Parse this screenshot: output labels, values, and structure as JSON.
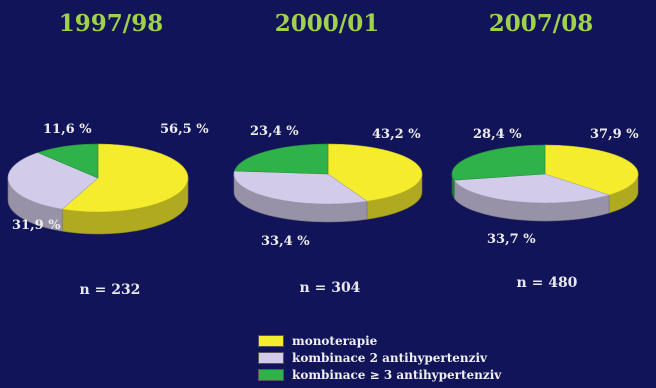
{
  "chart_data": [
    {
      "type": "pie",
      "title": "1997/98",
      "n_label": "n = 232",
      "slices": [
        {
          "name": "monoterapie",
          "value": 56.5,
          "label": "56,5 %"
        },
        {
          "name": "kombinace 2 antihypertenziv",
          "value": 31.9,
          "label": "31,9 %"
        },
        {
          "name": "kombinace ≥ 3 antihypertenziv",
          "value": 11.6,
          "label": "11,6 %"
        }
      ]
    },
    {
      "type": "pie",
      "title": "2000/01",
      "n_label": "n = 304",
      "slices": [
        {
          "name": "monoterapie",
          "value": 43.2,
          "label": "43,2 %"
        },
        {
          "name": "kombinace 2 antihypertenziv",
          "value": 33.4,
          "label": "33,4 %"
        },
        {
          "name": "kombinace ≥ 3 antihypertenziv",
          "value": 23.4,
          "label": "23,4 %"
        }
      ]
    },
    {
      "type": "pie",
      "title": "2007/08",
      "n_label": "n = 480",
      "slices": [
        {
          "name": "monoterapie",
          "value": 37.9,
          "label": "37,9 %"
        },
        {
          "name": "kombinace 2 antihypertenziv",
          "value": 33.7,
          "label": "33,7 %"
        },
        {
          "name": "kombinace ≥ 3 antihypertenziv",
          "value": 28.4,
          "label": "28,4 %"
        }
      ]
    }
  ],
  "legend": [
    {
      "label": "monoterapie",
      "color": "#f4ec2c"
    },
    {
      "label": "kombinace 2 antihypertenziv",
      "color": "#d2cbe9"
    },
    {
      "label": "kombinace ≥ 3 antihypertenziv",
      "color": "#2fb24a"
    }
  ],
  "colors": {
    "background": "#12145a",
    "title": "#9fd24a"
  }
}
